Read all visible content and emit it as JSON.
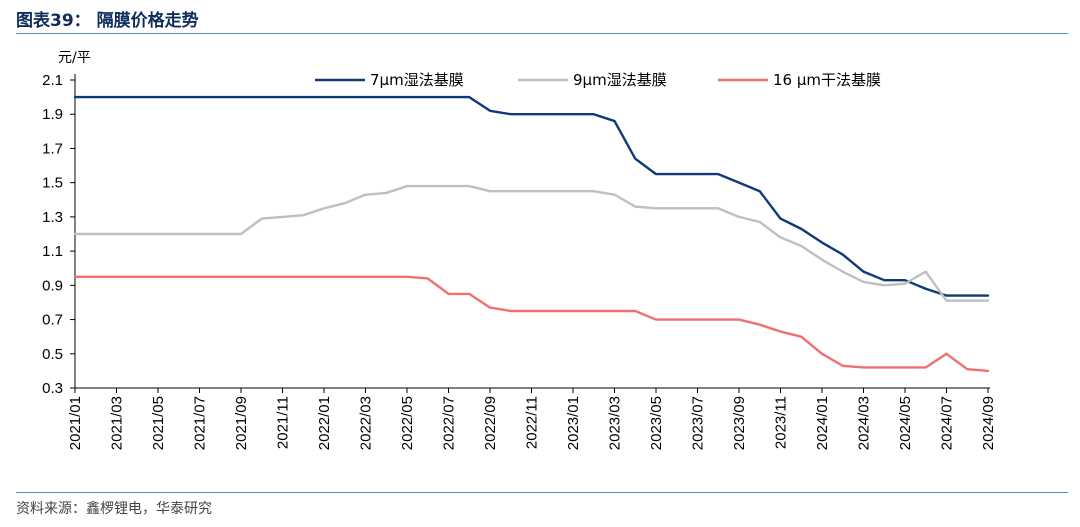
{
  "header": {
    "title": "图表39：  隔膜价格走势"
  },
  "footer": {
    "source": "资料来源：鑫椤锂电，华泰研究"
  },
  "chart_data": {
    "type": "line",
    "title": "隔膜价格走势",
    "ylabel": "元/平",
    "ylim": [
      0.3,
      2.1
    ],
    "yticks": [
      0.3,
      0.5,
      0.7,
      0.9,
      1.1,
      1.3,
      1.5,
      1.7,
      1.9,
      2.1
    ],
    "legend_position": "top",
    "x": [
      "2021/01",
      "2021/02",
      "2021/03",
      "2021/04",
      "2021/05",
      "2021/06",
      "2021/07",
      "2021/08",
      "2021/09",
      "2021/10",
      "2021/11",
      "2021/12",
      "2022/01",
      "2022/02",
      "2022/03",
      "2022/04",
      "2022/05",
      "2022/06",
      "2022/07",
      "2022/08",
      "2022/09",
      "2022/10",
      "2022/11",
      "2022/12",
      "2023/01",
      "2023/02",
      "2023/03",
      "2023/04",
      "2023/05",
      "2023/06",
      "2023/07",
      "2023/08",
      "2023/09",
      "2023/10",
      "2023/11",
      "2023/12",
      "2024/01",
      "2024/02",
      "2024/03",
      "2024/04",
      "2024/05",
      "2024/06",
      "2024/07",
      "2024/08",
      "2024/09"
    ],
    "xtick_labels": [
      "2021/01",
      "2021/03",
      "2021/05",
      "2021/07",
      "2021/09",
      "2021/11",
      "2022/01",
      "2022/03",
      "2022/05",
      "2022/07",
      "2022/09",
      "2022/11",
      "2023/01",
      "2023/03",
      "2023/05",
      "2023/07",
      "2023/09",
      "2023/11",
      "2024/01",
      "2024/03",
      "2024/05",
      "2024/07",
      "2024/09"
    ],
    "series": [
      {
        "name": "7μm湿法基膜",
        "color": "#0e3a78",
        "values": [
          2.0,
          2.0,
          2.0,
          2.0,
          2.0,
          2.0,
          2.0,
          2.0,
          2.0,
          2.0,
          2.0,
          2.0,
          2.0,
          2.0,
          2.0,
          2.0,
          2.0,
          2.0,
          2.0,
          2.0,
          1.92,
          1.9,
          1.9,
          1.9,
          1.9,
          1.9,
          1.86,
          1.64,
          1.55,
          1.55,
          1.55,
          1.55,
          1.5,
          1.45,
          1.29,
          1.23,
          1.15,
          1.08,
          0.98,
          0.93,
          0.93,
          0.88,
          0.84,
          0.84,
          0.84
        ]
      },
      {
        "name": "9μm湿法基膜",
        "color": "#bfbfbf",
        "values": [
          1.2,
          1.2,
          1.2,
          1.2,
          1.2,
          1.2,
          1.2,
          1.2,
          1.2,
          1.29,
          1.3,
          1.31,
          1.35,
          1.38,
          1.43,
          1.44,
          1.48,
          1.48,
          1.48,
          1.48,
          1.45,
          1.45,
          1.45,
          1.45,
          1.45,
          1.45,
          1.43,
          1.36,
          1.35,
          1.35,
          1.35,
          1.35,
          1.3,
          1.27,
          1.18,
          1.13,
          1.05,
          0.98,
          0.92,
          0.9,
          0.91,
          0.98,
          0.81,
          0.81,
          0.81
        ]
      },
      {
        "name": "16 μm干法基膜",
        "color": "#f07070",
        "values": [
          0.95,
          0.95,
          0.95,
          0.95,
          0.95,
          0.95,
          0.95,
          0.95,
          0.95,
          0.95,
          0.95,
          0.95,
          0.95,
          0.95,
          0.95,
          0.95,
          0.95,
          0.94,
          0.85,
          0.85,
          0.77,
          0.75,
          0.75,
          0.75,
          0.75,
          0.75,
          0.75,
          0.75,
          0.7,
          0.7,
          0.7,
          0.7,
          0.7,
          0.67,
          0.63,
          0.6,
          0.5,
          0.43,
          0.42,
          0.42,
          0.42,
          0.42,
          0.5,
          0.41,
          0.4
        ]
      }
    ]
  }
}
